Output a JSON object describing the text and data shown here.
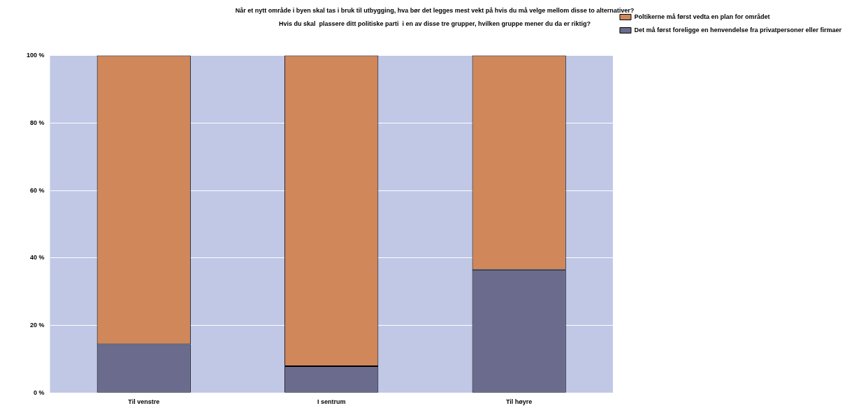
{
  "chart_data": {
    "type": "bar",
    "title": "Når et nytt område i byen skal tas i bruk til utbygging, hva bør det legges mest vekt på hvis du må velge mellom disse to alternativer?",
    "subtitle": "Hvis du skal  plassere ditt politiske parti  i en av disse tre grupper, hvilken gruppe mener du da er riktig?",
    "categories": [
      "Til venstre",
      "I sentrum",
      "Til høyre"
    ],
    "stacked": true,
    "series": [
      {
        "name": "Det må først foreligge en henvendelse fra privatpersoner eller firmaer",
        "color": "#6b6b8e",
        "values": [
          14.4,
          7.9,
          36.5
        ]
      },
      {
        "name": "Poltikerne må først vedta en plan for området",
        "color": "#d0875a",
        "values": [
          85.6,
          92.1,
          63.5
        ]
      }
    ],
    "ylim": [
      0,
      100
    ],
    "yticks": [
      {
        "value": 0,
        "label": "0 %"
      },
      {
        "value": 20,
        "label": "20 %"
      },
      {
        "value": 40,
        "label": "40 %"
      },
      {
        "value": 60,
        "label": "60 %"
      },
      {
        "value": 80,
        "label": "80 %"
      },
      {
        "value": 100,
        "label": "100 %"
      }
    ],
    "grid": "y",
    "legend": "top right"
  }
}
